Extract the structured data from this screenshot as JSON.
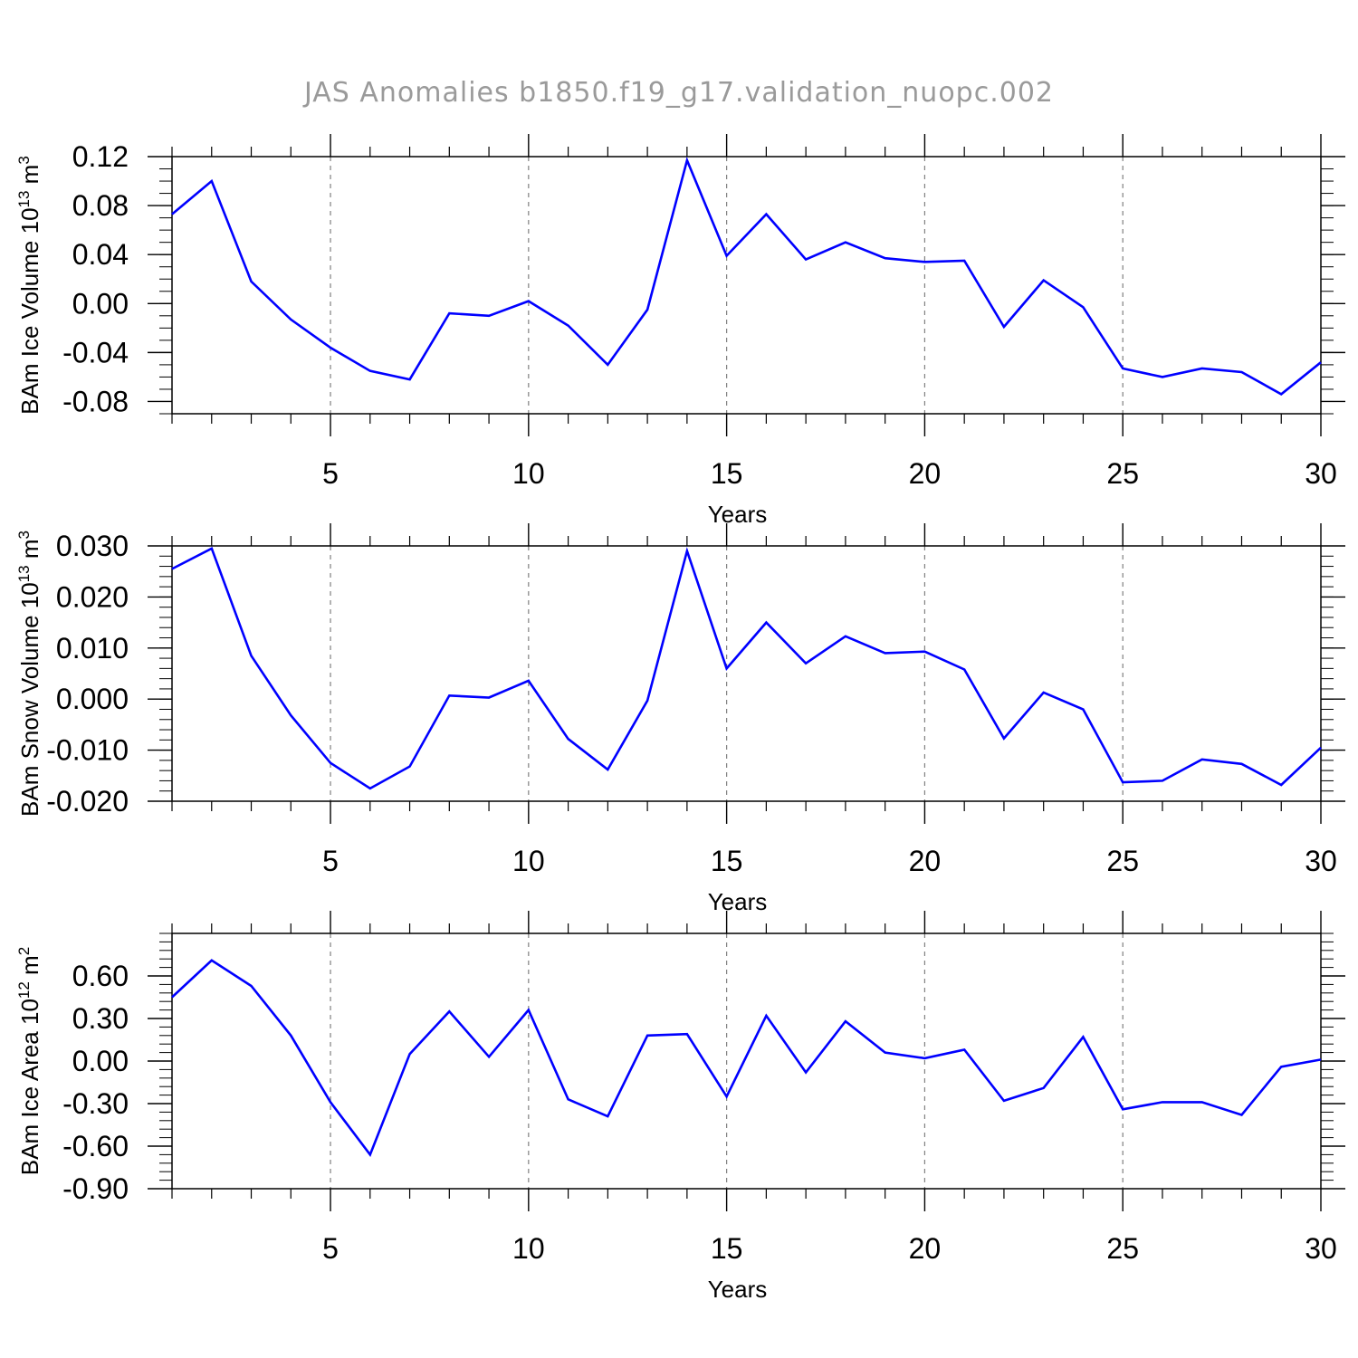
{
  "title": "JAS Anomalies b1850.f19_g17.validation_nuopc.002",
  "colors": {
    "line": "#0000ff",
    "axis": "#000000",
    "grid": "#808080",
    "title": "#9a9a9a"
  },
  "chart_data": [
    {
      "type": "line",
      "xlabel": "Years",
      "ylabel_main": "BAm Ice Volume 10",
      "ylabel_exp": "13",
      "ylabel_unit": " m",
      "ylabel_unit_exp": "3",
      "xlim": [
        1,
        30
      ],
      "ylim": [
        -0.09,
        0.12
      ],
      "x_ticks": [
        5,
        10,
        15,
        20,
        25,
        30
      ],
      "y_ticks": [
        -0.08,
        -0.04,
        0.0,
        0.04,
        0.08,
        0.12
      ],
      "y_tick_labels": [
        "-0.08",
        "-0.04",
        "0.00",
        "0.04",
        "0.08",
        "0.12"
      ],
      "grid": "vertical dashed at major x ticks",
      "x": [
        1,
        2,
        3,
        4,
        5,
        6,
        7,
        8,
        9,
        10,
        11,
        12,
        13,
        14,
        15,
        16,
        17,
        18,
        19,
        20,
        21,
        22,
        23,
        24,
        25,
        26,
        27,
        28,
        29,
        30
      ],
      "values": [
        0.073,
        0.1,
        0.018,
        -0.013,
        -0.036,
        -0.055,
        -0.062,
        -0.008,
        -0.01,
        0.002,
        -0.018,
        -0.05,
        -0.005,
        0.117,
        0.039,
        0.073,
        0.036,
        0.05,
        0.037,
        0.034,
        0.035,
        -0.019,
        0.019,
        -0.003,
        -0.053,
        -0.06,
        -0.053,
        -0.056,
        -0.074,
        -0.048
      ]
    },
    {
      "type": "line",
      "xlabel": "Years",
      "ylabel_main": "BAm Snow Volume 10",
      "ylabel_exp": "13",
      "ylabel_unit": " m",
      "ylabel_unit_exp": "3",
      "xlim": [
        1,
        30
      ],
      "ylim": [
        -0.02,
        0.03
      ],
      "x_ticks": [
        5,
        10,
        15,
        20,
        25,
        30
      ],
      "y_ticks": [
        -0.02,
        -0.01,
        0.0,
        0.01,
        0.02,
        0.03
      ],
      "y_tick_labels": [
        "-0.020",
        "-0.010",
        "0.000",
        "0.010",
        "0.020",
        "0.030"
      ],
      "grid": "vertical dashed at major x ticks",
      "x": [
        1,
        2,
        3,
        4,
        5,
        6,
        7,
        8,
        9,
        10,
        11,
        12,
        13,
        14,
        15,
        16,
        17,
        18,
        19,
        20,
        21,
        22,
        23,
        24,
        25,
        26,
        27,
        28,
        29,
        30
      ],
      "values": [
        0.0255,
        0.0295,
        0.0085,
        -0.0032,
        -0.0125,
        -0.0175,
        -0.0132,
        0.0007,
        0.0003,
        0.0036,
        -0.0078,
        -0.0138,
        -0.0003,
        0.029,
        0.006,
        0.015,
        0.007,
        0.0123,
        0.009,
        0.0093,
        0.0058,
        -0.0077,
        0.0013,
        -0.002,
        -0.0163,
        -0.016,
        -0.0118,
        -0.0127,
        -0.0168,
        -0.0095
      ]
    },
    {
      "type": "line",
      "xlabel": "Years",
      "ylabel_main": "BAm Ice Area 10",
      "ylabel_exp": "12",
      "ylabel_unit": " m",
      "ylabel_unit_exp": "2",
      "xlim": [
        1,
        30
      ],
      "ylim": [
        -0.9,
        0.9
      ],
      "x_ticks": [
        5,
        10,
        15,
        20,
        25,
        30
      ],
      "y_ticks": [
        -0.9,
        -0.6,
        -0.3,
        0.0,
        0.3,
        0.6
      ],
      "y_tick_labels": [
        "-0.90",
        "-0.60",
        "-0.30",
        "0.00",
        "0.30",
        "0.60"
      ],
      "grid": "vertical dashed at major x ticks",
      "x": [
        1,
        2,
        3,
        4,
        5,
        6,
        7,
        8,
        9,
        10,
        11,
        12,
        13,
        14,
        15,
        16,
        17,
        18,
        19,
        20,
        21,
        22,
        23,
        24,
        25,
        26,
        27,
        28,
        29,
        30
      ],
      "values": [
        0.45,
        0.71,
        0.53,
        0.18,
        -0.29,
        -0.66,
        0.05,
        0.35,
        0.03,
        0.36,
        -0.27,
        -0.39,
        0.18,
        0.19,
        -0.25,
        0.32,
        -0.08,
        0.28,
        0.06,
        0.02,
        0.08,
        -0.28,
        -0.19,
        0.17,
        -0.34,
        -0.29,
        -0.29,
        -0.38,
        -0.04,
        0.01
      ]
    }
  ]
}
